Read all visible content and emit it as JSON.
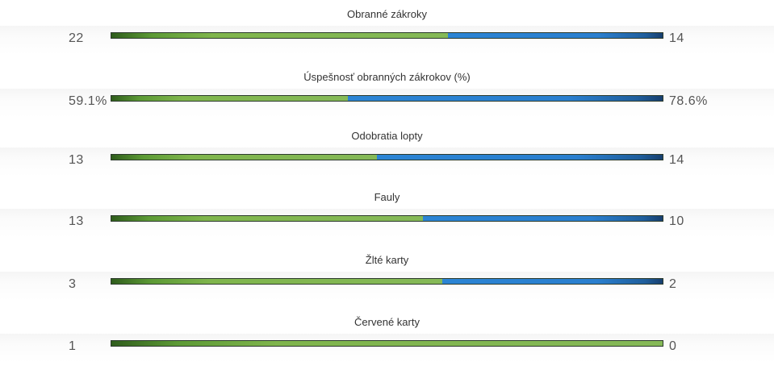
{
  "chart_data": {
    "type": "bar",
    "orientation": "horizontal-stacked-comparison",
    "series": [
      {
        "color": "#7fb54c"
      },
      {
        "color": "#2a7fcf"
      }
    ],
    "rows": [
      {
        "title": "Obranné zákroky",
        "left_label": "22",
        "right_label": "14",
        "left_value": 22,
        "right_value": 14
      },
      {
        "title": "Úspešnosť obranných zákrokov (%)",
        "left_label": "59.1%",
        "right_label": "78.6%",
        "left_value": 59.1,
        "right_value": 78.6
      },
      {
        "title": "Odobratia lopty",
        "left_label": "13",
        "right_label": "14",
        "left_value": 13,
        "right_value": 14
      },
      {
        "title": "Fauly",
        "left_label": "13",
        "right_label": "10",
        "left_value": 13,
        "right_value": 10
      },
      {
        "title": "Žlté karty",
        "left_label": "3",
        "right_label": "2",
        "left_value": 3,
        "right_value": 2
      },
      {
        "title": "Červené karty",
        "left_label": "1",
        "right_label": "0",
        "left_value": 1,
        "right_value": 0
      }
    ]
  }
}
